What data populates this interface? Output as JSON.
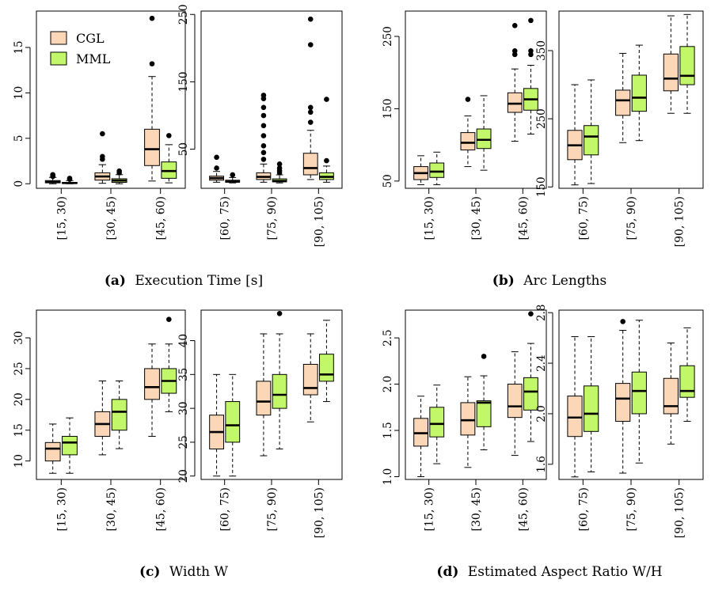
{
  "legend": [
    {
      "label": "CGL",
      "color": "#fbd7b7"
    },
    {
      "label": "MML",
      "color": "#c3f76a"
    }
  ],
  "colors": {
    "CGL": "#fbd7b7",
    "MML": "#c3f76a",
    "stroke": "#000000"
  },
  "panels": [
    {
      "letter": "(a)",
      "caption": "Execution Time [s]"
    },
    {
      "letter": "(b)",
      "caption": "Arc Lengths"
    },
    {
      "letter": "(c)",
      "caption": "Width W"
    },
    {
      "letter": "(d)",
      "caption": "Estimated Aspect Ratio W/H"
    }
  ],
  "chart_data": [
    {
      "type": "box",
      "panel": "a",
      "sub": "left",
      "categories": [
        "[15, 30)",
        "[30, 45)",
        "[45, 60)"
      ],
      "yticks": [
        0,
        5,
        10,
        15
      ],
      "ylim": [
        -0.5,
        19
      ],
      "series": [
        {
          "name": "CGL",
          "boxes": [
            {
              "min": 0,
              "q1": 0.1,
              "median": 0.2,
              "q3": 0.35,
              "max": 0.7,
              "outliers": [
                0.8,
                0.9,
                1.0
              ]
            },
            {
              "min": 0.05,
              "q1": 0.4,
              "median": 0.8,
              "q3": 1.2,
              "max": 2.1,
              "outliers": [
                2.7,
                3.0,
                5.5
              ]
            },
            {
              "min": 0.3,
              "q1": 2.0,
              "median": 3.8,
              "q3": 6.0,
              "max": 11.8,
              "outliers": [
                13.2,
                18.2
              ]
            }
          ]
        },
        {
          "name": "MML",
          "boxes": [
            {
              "min": 0,
              "q1": 0.03,
              "median": 0.08,
              "q3": 0.15,
              "max": 0.35,
              "outliers": [
                0.5,
                0.6
              ]
            },
            {
              "min": 0,
              "q1": 0.15,
              "median": 0.35,
              "q3": 0.55,
              "max": 1.0,
              "outliers": [
                1.2,
                1.4
              ]
            },
            {
              "min": 0.1,
              "q1": 0.6,
              "median": 1.4,
              "q3": 2.4,
              "max": 4.3,
              "outliers": [
                5.3
              ]
            }
          ]
        }
      ]
    },
    {
      "type": "box",
      "panel": "a",
      "sub": "right",
      "categories": [
        "[60, 75)",
        "[75, 90)",
        "[90, 105)"
      ],
      "yticks": [
        50,
        150,
        250
      ],
      "ylim": [
        -8,
        255
      ],
      "series": [
        {
          "name": "CGL",
          "boxes": [
            {
              "min": 1,
              "q1": 4,
              "median": 7,
              "q3": 10,
              "max": 17,
              "outliers": [
                22,
                38
              ]
            },
            {
              "min": 1,
              "q1": 5,
              "median": 9,
              "q3": 15,
              "max": 28,
              "outliers": [
                35,
                45,
                55,
                70,
                85,
                100,
                112,
                125,
                130
              ]
            },
            {
              "min": 5,
              "q1": 12,
              "median": 22,
              "q3": 44,
              "max": 78,
              "outliers": [
                90,
                105,
                112,
                205,
                243
              ]
            }
          ]
        },
        {
          "name": "MML",
          "boxes": [
            {
              "min": 0,
              "q1": 1,
              "median": 2,
              "q3": 4,
              "max": 8,
              "outliers": [
                12
              ]
            },
            {
              "min": 0,
              "q1": 1.5,
              "median": 3,
              "q3": 6,
              "max": 12,
              "outliers": [
                15,
                18,
                22,
                28
              ]
            },
            {
              "min": 1,
              "q1": 5,
              "median": 9,
              "q3": 15,
              "max": 25,
              "outliers": [
                33,
                124
              ]
            }
          ]
        }
      ]
    },
    {
      "type": "box",
      "panel": "b",
      "sub": "left",
      "categories": [
        "[15, 30)",
        "[30, 45)",
        "[45, 60)"
      ],
      "yticks": [
        50,
        150,
        250
      ],
      "ylim": [
        40,
        285
      ],
      "series": [
        {
          "name": "CGL",
          "boxes": [
            {
              "min": 45,
              "q1": 52,
              "median": 61,
              "q3": 70,
              "max": 85,
              "outliers": []
            },
            {
              "min": 70,
              "q1": 93,
              "median": 103,
              "q3": 117,
              "max": 140,
              "outliers": [
                163
              ]
            },
            {
              "min": 105,
              "q1": 145,
              "median": 157,
              "q3": 172,
              "max": 205,
              "outliers": [
                225,
                230,
                265
              ]
            }
          ]
        },
        {
          "name": "MML",
          "boxes": [
            {
              "min": 45,
              "q1": 55,
              "median": 63,
              "q3": 75,
              "max": 90,
              "outliers": []
            },
            {
              "min": 65,
              "q1": 95,
              "median": 107,
              "q3": 122,
              "max": 168,
              "outliers": []
            },
            {
              "min": 115,
              "q1": 148,
              "median": 163,
              "q3": 178,
              "max": 210,
              "outliers": [
                225,
                230,
                272
              ]
            }
          ]
        }
      ]
    },
    {
      "type": "box",
      "panel": "b",
      "sub": "right",
      "categories": [
        "[60, 75)",
        "[75, 90)",
        "[90, 105)"
      ],
      "yticks": [
        150,
        250,
        350
      ],
      "ylim": [
        148,
        408
      ],
      "series": [
        {
          "name": "CGL",
          "boxes": [
            {
              "min": 153,
              "q1": 190,
              "median": 211,
              "q3": 233,
              "max": 300,
              "outliers": []
            },
            {
              "min": 215,
              "q1": 255,
              "median": 277,
              "q3": 292,
              "max": 346,
              "outliers": []
            },
            {
              "min": 258,
              "q1": 291,
              "median": 309,
              "q3": 345,
              "max": 401,
              "outliers": []
            }
          ]
        },
        {
          "name": "MML",
          "boxes": [
            {
              "min": 155,
              "q1": 197,
              "median": 224,
              "q3": 240,
              "max": 307,
              "outliers": []
            },
            {
              "min": 218,
              "q1": 261,
              "median": 281,
              "q3": 314,
              "max": 358,
              "outliers": []
            },
            {
              "min": 258,
              "q1": 300,
              "median": 313,
              "q3": 356,
              "max": 403,
              "outliers": []
            }
          ]
        }
      ]
    },
    {
      "type": "box",
      "panel": "c",
      "sub": "left",
      "categories": [
        "[15, 30)",
        "[30, 45)",
        "[45, 60)"
      ],
      "yticks": [
        10,
        15,
        20,
        25,
        30
      ],
      "ylim": [
        7,
        34.5
      ],
      "series": [
        {
          "name": "CGL",
          "boxes": [
            {
              "min": 8,
              "q1": 10,
              "median": 12,
              "q3": 13,
              "max": 16,
              "outliers": []
            },
            {
              "min": 11,
              "q1": 14,
              "median": 16,
              "q3": 18,
              "max": 23,
              "outliers": []
            },
            {
              "min": 14,
              "q1": 20,
              "median": 22,
              "q3": 25,
              "max": 29,
              "outliers": []
            }
          ]
        },
        {
          "name": "MML",
          "boxes": [
            {
              "min": 8,
              "q1": 11,
              "median": 13,
              "q3": 14,
              "max": 17,
              "outliers": []
            },
            {
              "min": 12,
              "q1": 15,
              "median": 18,
              "q3": 20,
              "max": 23,
              "outliers": []
            },
            {
              "min": 18,
              "q1": 21,
              "median": 23,
              "q3": 25,
              "max": 29,
              "outliers": [
                33
              ]
            }
          ]
        }
      ]
    },
    {
      "type": "box",
      "panel": "c",
      "sub": "right",
      "categories": [
        "[60, 75)",
        "[75, 90)",
        "[90, 105)"
      ],
      "yticks": [
        20,
        25,
        30,
        35,
        40
      ],
      "ylim": [
        19.5,
        44.5
      ],
      "series": [
        {
          "name": "CGL",
          "boxes": [
            {
              "min": 20,
              "q1": 24,
              "median": 26.5,
              "q3": 29,
              "max": 35,
              "outliers": []
            },
            {
              "min": 23,
              "q1": 29,
              "median": 31,
              "q3": 34,
              "max": 41,
              "outliers": []
            },
            {
              "min": 28,
              "q1": 32,
              "median": 33,
              "q3": 36.5,
              "max": 41,
              "outliers": []
            }
          ]
        },
        {
          "name": "MML",
          "boxes": [
            {
              "min": 20,
              "q1": 25,
              "median": 27.5,
              "q3": 31,
              "max": 35,
              "outliers": []
            },
            {
              "min": 24,
              "q1": 30,
              "median": 32,
              "q3": 35,
              "max": 41,
              "outliers": [
                44
              ]
            },
            {
              "min": 31,
              "q1": 34,
              "median": 35,
              "q3": 38,
              "max": 43,
              "outliers": []
            }
          ]
        }
      ]
    },
    {
      "type": "box",
      "panel": "d",
      "sub": "left",
      "categories": [
        "[15, 30)",
        "[30, 45)",
        "[45, 60)"
      ],
      "yticks": [
        1.0,
        1.5,
        2.0,
        2.5
      ],
      "ylim": [
        0.97,
        2.8
      ],
      "ytick_labels": [
        "1.0",
        "1.5",
        "2.0",
        "2.5"
      ],
      "series": [
        {
          "name": "CGL",
          "boxes": [
            {
              "min": 1.0,
              "q1": 1.33,
              "median": 1.47,
              "q3": 1.63,
              "max": 1.87,
              "outliers": []
            },
            {
              "min": 1.1,
              "q1": 1.45,
              "median": 1.61,
              "q3": 1.8,
              "max": 2.08,
              "outliers": []
            },
            {
              "min": 1.23,
              "q1": 1.64,
              "median": 1.76,
              "q3": 2.0,
              "max": 2.35,
              "outliers": []
            }
          ]
        },
        {
          "name": "MML",
          "boxes": [
            {
              "min": 1.14,
              "q1": 1.43,
              "median": 1.57,
              "q3": 1.75,
              "max": 1.99,
              "outliers": []
            },
            {
              "min": 1.29,
              "q1": 1.54,
              "median": 1.8,
              "q3": 1.82,
              "max": 2.09,
              "outliers": [
                2.3
              ]
            },
            {
              "min": 1.38,
              "q1": 1.72,
              "median": 1.92,
              "q3": 2.07,
              "max": 2.44,
              "outliers": [
                2.76
              ]
            }
          ]
        }
      ]
    },
    {
      "type": "box",
      "panel": "d",
      "sub": "right",
      "categories": [
        "[60, 75)",
        "[75, 90)",
        "[90, 105)"
      ],
      "yticks": [
        1.6,
        2.0,
        2.4,
        2.8
      ],
      "ylim": [
        1.48,
        2.82
      ],
      "ytick_labels": [
        "1.6",
        "2.0",
        "2.4",
        "2.8"
      ],
      "series": [
        {
          "name": "CGL",
          "boxes": [
            {
              "min": 1.5,
              "q1": 1.82,
              "median": 1.97,
              "q3": 2.14,
              "max": 2.61,
              "outliers": []
            },
            {
              "min": 1.53,
              "q1": 1.94,
              "median": 2.12,
              "q3": 2.24,
              "max": 2.66,
              "outliers": [
                2.73
              ]
            },
            {
              "min": 1.76,
              "q1": 2.0,
              "median": 2.06,
              "q3": 2.28,
              "max": 2.56,
              "outliers": []
            }
          ]
        },
        {
          "name": "MML",
          "boxes": [
            {
              "min": 1.54,
              "q1": 1.86,
              "median": 2.0,
              "q3": 2.22,
              "max": 2.61,
              "outliers": []
            },
            {
              "min": 1.61,
              "q1": 2.0,
              "median": 2.18,
              "q3": 2.33,
              "max": 2.74,
              "outliers": []
            },
            {
              "min": 1.94,
              "q1": 2.13,
              "median": 2.18,
              "q3": 2.38,
              "max": 2.68,
              "outliers": []
            }
          ]
        }
      ]
    }
  ]
}
